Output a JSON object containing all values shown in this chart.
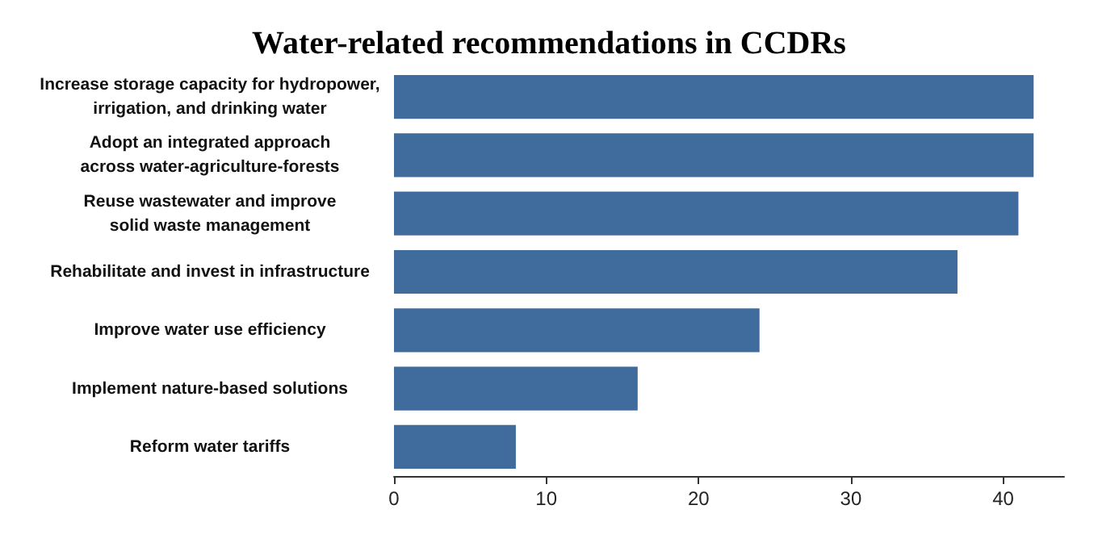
{
  "chart_data": {
    "type": "bar",
    "orientation": "horizontal",
    "title": "Water-related recommendations in CCDRs",
    "categories": [
      "Increase storage capacity for hydropower,\nirrigation, and drinking water",
      "Adopt an integrated approach\nacross water-agriculture-forests",
      "Reuse wastewater and improve\nsolid waste management",
      "Rehabilitate and invest in infrastructure",
      "Improve water use efficiency",
      "Implement nature-based solutions",
      "Reform water tariffs"
    ],
    "values": [
      42,
      42,
      41,
      37,
      24,
      16,
      8
    ],
    "color": "#3f6c9c",
    "xlim": [
      0,
      44
    ],
    "xticks": [
      0,
      10,
      20,
      30,
      40
    ],
    "grid": false
  }
}
